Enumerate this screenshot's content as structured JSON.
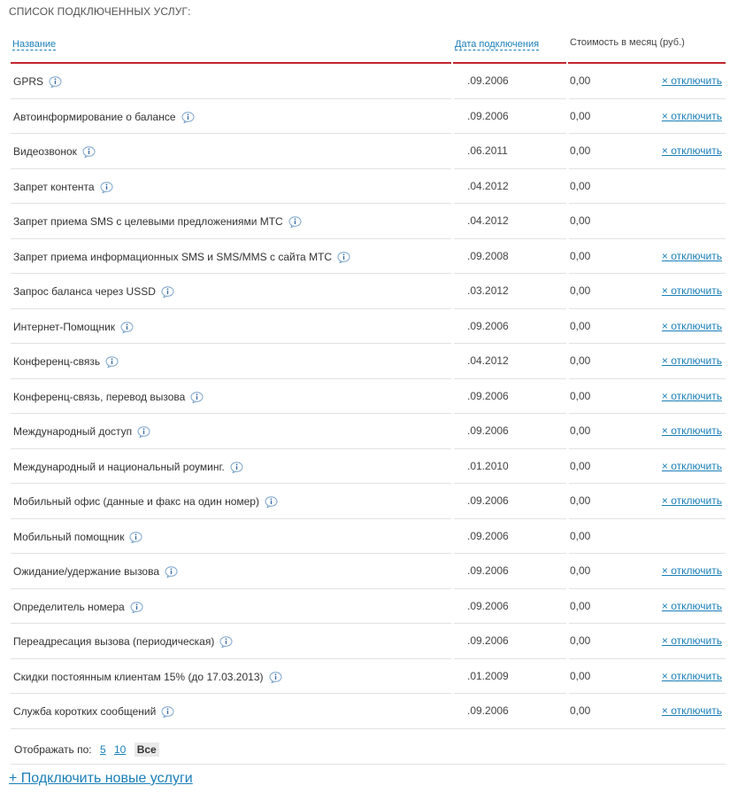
{
  "page": {
    "title": "СПИСОК ПОДКЛЮЧЕННЫХ УСЛУГ:"
  },
  "table": {
    "headers": {
      "name": "Название",
      "date": "Дата подключения",
      "cost": "Стоимость в месяц (руб.)"
    },
    "action_label": "× отключить",
    "rows": [
      {
        "name": "GPRS",
        "date": ".09.2006",
        "cost": "0,00",
        "can_disable": true
      },
      {
        "name": "Автоинформирование о балансе",
        "date": ".09.2006",
        "cost": "0,00",
        "can_disable": true
      },
      {
        "name": "Видеозвонок",
        "date": ".06.2011",
        "cost": "0,00",
        "can_disable": true
      },
      {
        "name": "Запрет контента",
        "date": ".04.2012",
        "cost": "0,00",
        "can_disable": false
      },
      {
        "name": "Запрет приема SMS с целевыми предложениями МТС",
        "date": ".04.2012",
        "cost": "0,00",
        "can_disable": false
      },
      {
        "name": "Запрет приема информационных SMS и SMS/MMS с сайта МТС",
        "date": ".09.2008",
        "cost": "0,00",
        "can_disable": true
      },
      {
        "name": "Запрос баланса через USSD",
        "date": ".03.2012",
        "cost": "0,00",
        "can_disable": true
      },
      {
        "name": "Интернет-Помощник",
        "date": ".09.2006",
        "cost": "0,00",
        "can_disable": true
      },
      {
        "name": "Конференц-связь",
        "date": ".04.2012",
        "cost": "0,00",
        "can_disable": true
      },
      {
        "name": "Конференц-связь, перевод вызова",
        "date": ".09.2006",
        "cost": "0,00",
        "can_disable": true
      },
      {
        "name": "Международный доступ",
        "date": ".09.2006",
        "cost": "0,00",
        "can_disable": true
      },
      {
        "name": "Международный и национальный роуминг.",
        "date": ".01.2010",
        "cost": "0,00",
        "can_disable": true
      },
      {
        "name": "Мобильный офис (данные и факс на один номер)",
        "date": ".09.2006",
        "cost": "0,00",
        "can_disable": true
      },
      {
        "name": "Мобильный помощник",
        "date": ".09.2006",
        "cost": "0,00",
        "can_disable": false
      },
      {
        "name": "Ожидание/удержание вызова",
        "date": ".09.2006",
        "cost": "0,00",
        "can_disable": true
      },
      {
        "name": "Определитель номера",
        "date": ".09.2006",
        "cost": "0,00",
        "can_disable": true
      },
      {
        "name": "Переадресация вызова (периодическая)",
        "date": ".09.2006",
        "cost": "0,00",
        "can_disable": true
      },
      {
        "name": "Скидки постоянным клиентам 15% (до 17.03.2013)",
        "date": ".01.2009",
        "cost": "0,00",
        "can_disable": true
      },
      {
        "name": "Служба коротких сообщений",
        "date": ".09.2006",
        "cost": "0,00",
        "can_disable": true
      }
    ]
  },
  "pager": {
    "label": "Отображать по:",
    "options": [
      "5",
      "10"
    ],
    "current": "Все"
  },
  "add_services": {
    "label": "+ Подключить новые услуги"
  },
  "colors": {
    "link": "#1a7fb8",
    "header_rule": "#c1252f",
    "row_divider": "#e2e2e2"
  },
  "icons": {
    "info": "info-icon"
  }
}
